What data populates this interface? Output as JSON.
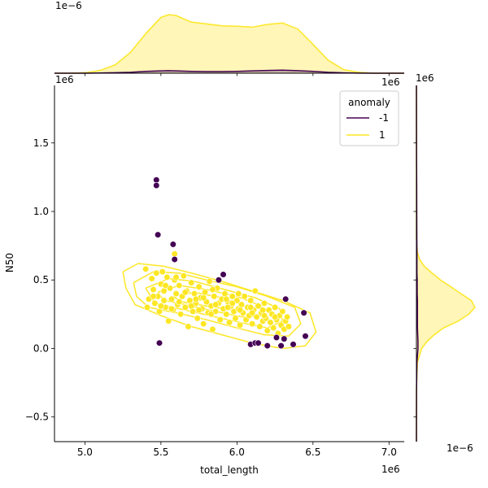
{
  "chart_data": {
    "type": "scatter",
    "subtype": "jointplot with kde contours and marginal kde",
    "title": "",
    "xlabel": "total_length",
    "ylabel": "N50",
    "x_offset_label": "1e6",
    "y_offset_label": "1e6",
    "top_marginal_offset_label": "1e−6",
    "right_marginal_offset_label": "1e−6",
    "xlim": [
      4.8,
      7.1
    ],
    "ylim": [
      -0.68,
      1.92
    ],
    "xticks": [
      5.0,
      5.5,
      6.0,
      6.5,
      7.0
    ],
    "xtick_labels": [
      "5.0",
      "5.5",
      "6.0",
      "6.5",
      "7.0"
    ],
    "yticks": [
      -0.5,
      0.0,
      0.5,
      1.0,
      1.5
    ],
    "ytick_labels": [
      "−0.5",
      "0.0",
      "0.5",
      "1.0",
      "1.5"
    ],
    "legend": {
      "title": "anomaly",
      "placement": "top-right",
      "entries": [
        {
          "label": "-1",
          "color": "#440154"
        },
        {
          "label": "1",
          "color": "#fde725"
        }
      ]
    },
    "colors": {
      "anomaly_-1": "#440154",
      "anomaly_1": "#fde725",
      "kde_fill_1": "#fff6b8",
      "kde_fill_-1": "#c9b8a6"
    },
    "grid": false,
    "series": [
      {
        "name": "-1",
        "color": "#440154",
        "points": [
          [
            5.47,
            1.23
          ],
          [
            5.47,
            1.19
          ],
          [
            5.48,
            0.83
          ],
          [
            5.49,
            0.04
          ],
          [
            5.58,
            0.76
          ],
          [
            5.59,
            0.65
          ],
          [
            5.88,
            0.5
          ],
          [
            5.91,
            0.54
          ],
          [
            6.09,
            0.03
          ],
          [
            6.12,
            0.04
          ],
          [
            6.14,
            0.04
          ],
          [
            6.2,
            0.02
          ],
          [
            6.26,
            0.08
          ],
          [
            6.29,
            0.02
          ],
          [
            6.31,
            0.07
          ],
          [
            6.32,
            0.36
          ],
          [
            6.37,
            0.03
          ],
          [
            6.44,
            0.26
          ],
          [
            6.45,
            0.09
          ]
        ]
      },
      {
        "name": "1",
        "color": "#fde725",
        "points": [
          [
            5.4,
            0.58
          ],
          [
            5.42,
            0.36
          ],
          [
            5.41,
            0.3
          ],
          [
            5.44,
            0.51
          ],
          [
            5.45,
            0.43
          ],
          [
            5.46,
            0.33
          ],
          [
            5.47,
            0.55
          ],
          [
            5.48,
            0.38
          ],
          [
            5.49,
            0.27
          ],
          [
            5.5,
            0.47
          ],
          [
            5.51,
            0.56
          ],
          [
            5.52,
            0.35
          ],
          [
            5.52,
            0.42
          ],
          [
            5.53,
            0.3
          ],
          [
            5.54,
            0.52
          ],
          [
            5.55,
            0.2
          ],
          [
            5.56,
            0.44
          ],
          [
            5.57,
            0.36
          ],
          [
            5.58,
            0.28
          ],
          [
            5.59,
            0.5
          ],
          [
            5.59,
            0.69
          ],
          [
            5.6,
            0.4
          ],
          [
            5.61,
            0.32
          ],
          [
            5.62,
            0.46
          ],
          [
            5.63,
            0.25
          ],
          [
            5.64,
            0.38
          ],
          [
            5.65,
            0.53
          ],
          [
            5.66,
            0.3
          ],
          [
            5.67,
            0.42
          ],
          [
            5.68,
            0.16
          ],
          [
            5.69,
            0.35
          ],
          [
            5.7,
            0.48
          ],
          [
            5.71,
            0.27
          ],
          [
            5.72,
            0.4
          ],
          [
            5.73,
            0.33
          ],
          [
            5.74,
            0.22
          ],
          [
            5.75,
            0.45
          ],
          [
            5.76,
            0.37
          ],
          [
            5.77,
            0.29
          ],
          [
            5.78,
            0.18
          ],
          [
            5.79,
            0.41
          ],
          [
            5.8,
            0.34
          ],
          [
            5.81,
            0.26
          ],
          [
            5.82,
            0.49
          ],
          [
            5.83,
            0.31
          ],
          [
            5.84,
            0.14
          ],
          [
            5.85,
            0.38
          ],
          [
            5.86,
            0.27
          ],
          [
            5.87,
            0.44
          ],
          [
            5.88,
            0.33
          ],
          [
            5.89,
            0.21
          ],
          [
            5.9,
            0.36
          ],
          [
            5.91,
            0.29
          ],
          [
            5.92,
            0.4
          ],
          [
            5.93,
            0.25
          ],
          [
            5.94,
            0.34
          ],
          [
            5.95,
            0.19
          ],
          [
            5.96,
            0.31
          ],
          [
            5.97,
            0.38
          ],
          [
            5.98,
            0.27
          ],
          [
            5.99,
            0.22
          ],
          [
            6.0,
            0.35
          ],
          [
            6.01,
            0.29
          ],
          [
            6.02,
            0.17
          ],
          [
            6.03,
            0.32
          ],
          [
            6.04,
            0.26
          ],
          [
            6.05,
            0.38
          ],
          [
            6.06,
            0.21
          ],
          [
            6.07,
            0.3
          ],
          [
            6.08,
            0.24
          ],
          [
            6.09,
            0.35
          ],
          [
            6.1,
            0.18
          ],
          [
            6.11,
            0.28
          ],
          [
            6.12,
            0.42
          ],
          [
            6.13,
            0.23
          ],
          [
            6.14,
            0.31
          ],
          [
            6.15,
            0.16
          ],
          [
            6.16,
            0.26
          ],
          [
            6.17,
            0.2
          ],
          [
            6.18,
            0.33
          ],
          [
            6.19,
            0.22
          ],
          [
            6.2,
            0.13
          ],
          [
            6.21,
            0.28
          ],
          [
            6.22,
            0.19
          ],
          [
            6.23,
            0.25
          ],
          [
            6.24,
            0.15
          ],
          [
            6.25,
            0.3
          ],
          [
            6.26,
            0.21
          ],
          [
            6.27,
            0.11
          ],
          [
            6.28,
            0.24
          ],
          [
            6.29,
            0.17
          ],
          [
            6.3,
            0.27
          ],
          [
            6.31,
            0.14
          ],
          [
            6.32,
            0.2
          ],
          [
            6.33,
            0.23
          ],
          [
            6.34,
            0.16
          ],
          [
            5.45,
            0.38
          ],
          [
            5.53,
            0.46
          ],
          [
            5.62,
            0.34
          ],
          [
            5.7,
            0.31
          ],
          [
            5.78,
            0.37
          ],
          [
            5.86,
            0.32
          ],
          [
            5.94,
            0.3
          ],
          [
            6.02,
            0.28
          ],
          [
            6.1,
            0.26
          ],
          [
            6.18,
            0.24
          ],
          [
            5.57,
            0.29
          ],
          [
            5.66,
            0.41
          ],
          [
            5.75,
            0.28
          ],
          [
            5.84,
            0.43
          ],
          [
            5.93,
            0.36
          ],
          [
            6.01,
            0.4
          ],
          [
            6.09,
            0.3
          ],
          [
            6.17,
            0.28
          ],
          [
            6.25,
            0.23
          ],
          [
            5.5,
            0.31
          ],
          [
            5.6,
            0.52
          ],
          [
            5.73,
            0.36
          ],
          [
            5.83,
            0.25
          ],
          [
            5.97,
            0.33
          ]
        ]
      }
    ],
    "kde_contours_1": [
      [
        [
          5.25,
          0.56
        ],
        [
          5.35,
          0.62
        ],
        [
          5.52,
          0.6
        ],
        [
          5.7,
          0.55
        ],
        [
          5.9,
          0.49
        ],
        [
          6.1,
          0.42
        ],
        [
          6.3,
          0.35
        ],
        [
          6.48,
          0.26
        ],
        [
          6.52,
          0.12
        ],
        [
          6.45,
          0.02
        ],
        [
          6.3,
          0.0
        ],
        [
          6.1,
          0.04
        ],
        [
          5.9,
          0.1
        ],
        [
          5.7,
          0.16
        ],
        [
          5.5,
          0.24
        ],
        [
          5.33,
          0.32
        ],
        [
          5.27,
          0.44
        ],
        [
          5.25,
          0.56
        ]
      ],
      [
        [
          5.32,
          0.48
        ],
        [
          5.45,
          0.56
        ],
        [
          5.62,
          0.55
        ],
        [
          5.8,
          0.5
        ],
        [
          6.0,
          0.45
        ],
        [
          6.2,
          0.38
        ],
        [
          6.38,
          0.3
        ],
        [
          6.42,
          0.18
        ],
        [
          6.34,
          0.09
        ],
        [
          6.18,
          0.1
        ],
        [
          6.0,
          0.15
        ],
        [
          5.8,
          0.21
        ],
        [
          5.6,
          0.26
        ],
        [
          5.42,
          0.3
        ],
        [
          5.34,
          0.38
        ],
        [
          5.32,
          0.48
        ]
      ],
      [
        [
          5.4,
          0.44
        ],
        [
          5.55,
          0.51
        ],
        [
          5.72,
          0.49
        ],
        [
          5.92,
          0.43
        ],
        [
          6.12,
          0.37
        ],
        [
          6.28,
          0.29
        ],
        [
          6.3,
          0.2
        ],
        [
          6.2,
          0.15
        ],
        [
          6.02,
          0.19
        ],
        [
          5.82,
          0.24
        ],
        [
          5.62,
          0.29
        ],
        [
          5.46,
          0.33
        ],
        [
          5.4,
          0.44
        ]
      ],
      [
        [
          5.48,
          0.41
        ],
        [
          5.62,
          0.46
        ],
        [
          5.8,
          0.43
        ],
        [
          6.0,
          0.38
        ],
        [
          6.16,
          0.31
        ],
        [
          6.18,
          0.24
        ],
        [
          6.04,
          0.23
        ],
        [
          5.86,
          0.27
        ],
        [
          5.66,
          0.32
        ],
        [
          5.52,
          0.35
        ],
        [
          5.48,
          0.41
        ]
      ],
      [
        [
          5.58,
          0.38
        ],
        [
          5.72,
          0.41
        ],
        [
          5.9,
          0.37
        ],
        [
          6.04,
          0.32
        ],
        [
          5.98,
          0.28
        ],
        [
          5.8,
          0.31
        ],
        [
          5.64,
          0.34
        ],
        [
          5.58,
          0.38
        ]
      ]
    ],
    "marginal_x": {
      "x": [
        4.8,
        4.9,
        5.0,
        5.1,
        5.2,
        5.3,
        5.4,
        5.5,
        5.55,
        5.6,
        5.7,
        5.8,
        5.9,
        6.0,
        6.1,
        6.2,
        6.3,
        6.4,
        6.5,
        6.6,
        6.7,
        6.8,
        6.9,
        7.0,
        7.1
      ],
      "density_1": [
        0,
        0,
        0.01,
        0.06,
        0.18,
        0.45,
        0.85,
        1.2,
        1.26,
        1.24,
        1.1,
        1.06,
        1.02,
        1.01,
        0.99,
        1.05,
        1.08,
        0.95,
        0.62,
        0.28,
        0.08,
        0.02,
        0,
        0,
        0
      ],
      "density_-1": [
        0,
        0,
        0,
        0.005,
        0.01,
        0.02,
        0.04,
        0.05,
        0.055,
        0.05,
        0.04,
        0.035,
        0.035,
        0.04,
        0.05,
        0.06,
        0.065,
        0.055,
        0.04,
        0.02,
        0.008,
        0.002,
        0,
        0,
        0
      ]
    },
    "marginal_y": {
      "y": [
        -0.68,
        -0.3,
        -0.1,
        0.0,
        0.05,
        0.1,
        0.15,
        0.2,
        0.25,
        0.3,
        0.35,
        0.4,
        0.45,
        0.5,
        0.55,
        0.6,
        0.65,
        0.7,
        0.8,
        1.0,
        1.2,
        1.4,
        1.92
      ],
      "density_1": [
        0,
        0,
        0.02,
        0.1,
        0.2,
        0.34,
        0.52,
        0.8,
        1.0,
        1.12,
        1.05,
        0.85,
        0.66,
        0.46,
        0.3,
        0.15,
        0.06,
        0.02,
        0,
        0,
        0,
        0,
        0
      ],
      "density_-1": [
        0,
        0.002,
        0.01,
        0.03,
        0.03,
        0.025,
        0.02,
        0.02,
        0.02,
        0.02,
        0.02,
        0.015,
        0.015,
        0.015,
        0.01,
        0.01,
        0.01,
        0.01,
        0.008,
        0.006,
        0.005,
        0.002,
        0
      ]
    }
  }
}
